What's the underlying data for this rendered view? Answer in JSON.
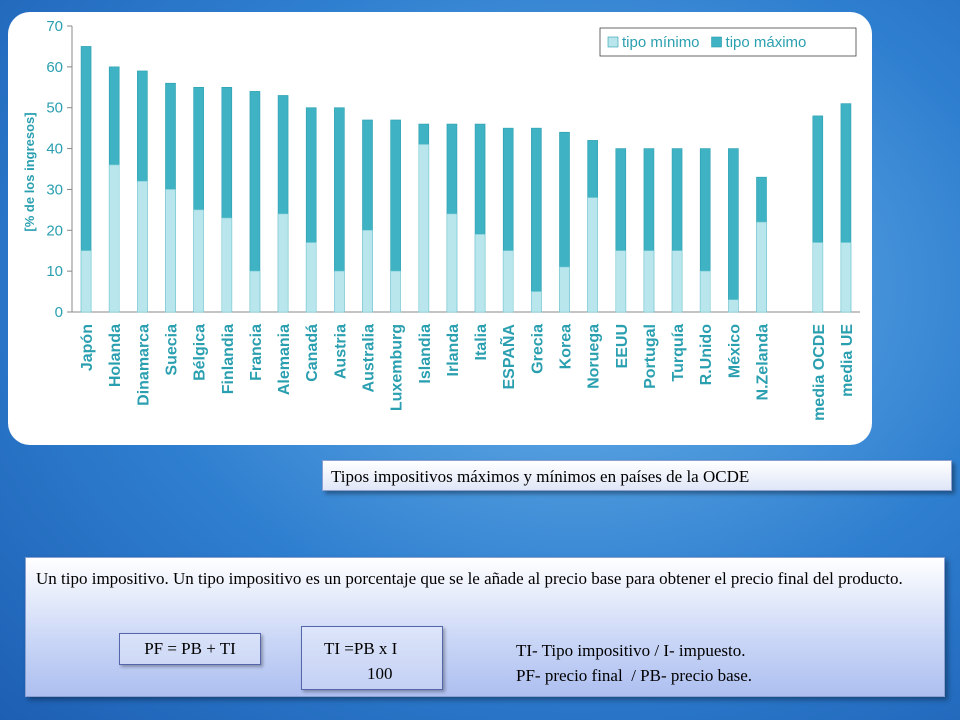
{
  "chart_data": {
    "type": "bar",
    "ylabel": "[% de los ingresos]",
    "categories": [
      "Japón",
      "Holanda",
      "Dinamarca",
      "Suecia",
      "Bélgica",
      "Finlandia",
      "Francia",
      "Alemania",
      "Canadá",
      "Austria",
      "Australia",
      "Luxemburg",
      "Islandia",
      "Irlanda",
      "Italia",
      "ESPAÑA",
      "Grecia",
      "Korea",
      "Noruega",
      "EEUU",
      "Portugal",
      "Turquía",
      "R.Unido",
      "México",
      "N.Zelanda",
      null,
      "media OCDE",
      "media UE"
    ],
    "series": [
      {
        "name": "tipo mínimo",
        "color": "#b9e6ec",
        "values": [
          15,
          36,
          32,
          30,
          25,
          23,
          10,
          24,
          17,
          10,
          20,
          10,
          41,
          24,
          19,
          15,
          5,
          11,
          28,
          15,
          15,
          15,
          10,
          3,
          22,
          null,
          17,
          17
        ]
      },
      {
        "name": "tipo máximo",
        "color": "#3fb3c3",
        "values": [
          65,
          60,
          59,
          56,
          55,
          55,
          54,
          53,
          50,
          50,
          47,
          47,
          46,
          46,
          46,
          45,
          45,
          44,
          42,
          40,
          40,
          40,
          40,
          40,
          33,
          null,
          48,
          51
        ]
      }
    ],
    "ylim": [
      0,
      70
    ],
    "yticks": [
      0,
      10,
      20,
      30,
      40,
      50,
      60,
      70
    ],
    "legend": "top-right"
  },
  "caption": "Tipos impositivos máximos y mínimos en países de la OCDE",
  "description": "Un tipo impositivo. Un tipo impositivo es un porcentaje que se le añade al precio base para obtener el precio final del producto.",
  "formulas": {
    "pf": "PF = PB + TI",
    "ti_top": "TI =PB x I",
    "ti_bottom": "100",
    "legend_1": "TI- Tipo impositivo / I- impuesto.",
    "legend_2": "PF- precio final  / PB- precio base."
  }
}
